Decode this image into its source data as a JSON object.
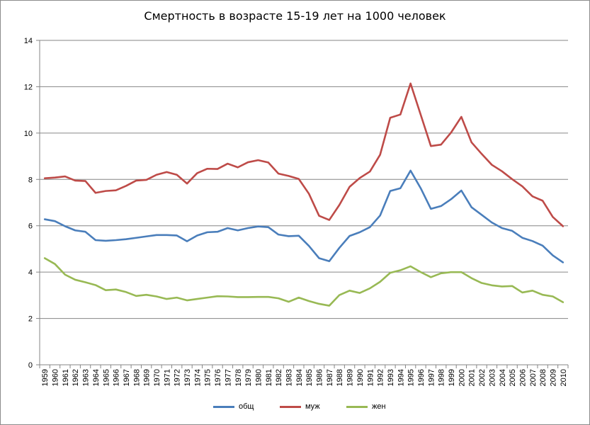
{
  "chart_data": {
    "type": "line",
    "title": "Смертность в возрасте 15-19 лет на 1000 человек",
    "xlabel": "",
    "ylabel": "",
    "ylim": [
      0,
      14
    ],
    "yticks": [
      "0",
      "2",
      "4",
      "6",
      "8",
      "10",
      "12",
      "14"
    ],
    "grid": true,
    "legend_position": "bottom",
    "x": [
      "1959",
      "1960",
      "1961",
      "1962",
      "1963",
      "1964",
      "1965",
      "1966",
      "1967",
      "1968",
      "1969",
      "1970",
      "1971",
      "1972",
      "1973",
      "1974",
      "1975",
      "1976",
      "1977",
      "1978",
      "1979",
      "1980",
      "1981",
      "1982",
      "1983",
      "1984",
      "1985",
      "1986",
      "1987",
      "1988",
      "1989",
      "1990",
      "1991",
      "1992",
      "1993",
      "1994",
      "1995",
      "1996",
      "1997",
      "1998",
      "1999",
      "2000",
      "2001",
      "2002",
      "2003",
      "2004",
      "2005",
      "2006",
      "2007",
      "2008",
      "2009",
      "2010"
    ],
    "series": [
      {
        "name": "общ",
        "color": "#4a7ebb",
        "values": [
          6.28,
          6.2,
          5.98,
          5.8,
          5.74,
          5.38,
          5.35,
          5.38,
          5.42,
          5.48,
          5.54,
          5.6,
          5.6,
          5.58,
          5.33,
          5.58,
          5.72,
          5.74,
          5.9,
          5.8,
          5.9,
          5.97,
          5.94,
          5.62,
          5.55,
          5.57,
          5.13,
          4.6,
          4.47,
          5.05,
          5.56,
          5.72,
          5.94,
          6.44,
          7.5,
          7.62,
          8.38,
          7.62,
          6.73,
          6.85,
          7.15,
          7.52,
          6.8,
          6.47,
          6.14,
          5.9,
          5.78,
          5.48,
          5.34,
          5.14,
          4.72,
          4.42
        ]
      },
      {
        "name": "муж",
        "color": "#be4b48",
        "values": [
          8.05,
          8.08,
          8.13,
          7.95,
          7.93,
          7.42,
          7.5,
          7.53,
          7.72,
          7.95,
          7.98,
          8.2,
          8.32,
          8.2,
          7.82,
          8.27,
          8.46,
          8.45,
          8.68,
          8.52,
          8.74,
          8.83,
          8.73,
          8.25,
          8.15,
          8.02,
          7.38,
          6.43,
          6.25,
          6.9,
          7.68,
          8.06,
          8.34,
          9.06,
          10.66,
          10.8,
          12.14,
          10.79,
          9.44,
          9.5,
          10.03,
          10.7,
          9.6,
          9.1,
          8.63,
          8.35,
          8.01,
          7.7,
          7.27,
          7.08,
          6.38,
          5.98
        ]
      },
      {
        "name": "жен",
        "color": "#98b954",
        "values": [
          4.6,
          4.35,
          3.89,
          3.67,
          3.56,
          3.44,
          3.22,
          3.25,
          3.14,
          2.97,
          3.02,
          2.95,
          2.84,
          2.9,
          2.78,
          2.84,
          2.9,
          2.96,
          2.95,
          2.92,
          2.92,
          2.93,
          2.93,
          2.87,
          2.72,
          2.9,
          2.75,
          2.63,
          2.55,
          3.01,
          3.2,
          3.1,
          3.3,
          3.58,
          3.97,
          4.08,
          4.25,
          4.0,
          3.78,
          3.95,
          4.0,
          4.0,
          3.74,
          3.53,
          3.43,
          3.38,
          3.4,
          3.12,
          3.2,
          3.02,
          2.95,
          2.7
        ]
      }
    ]
  }
}
